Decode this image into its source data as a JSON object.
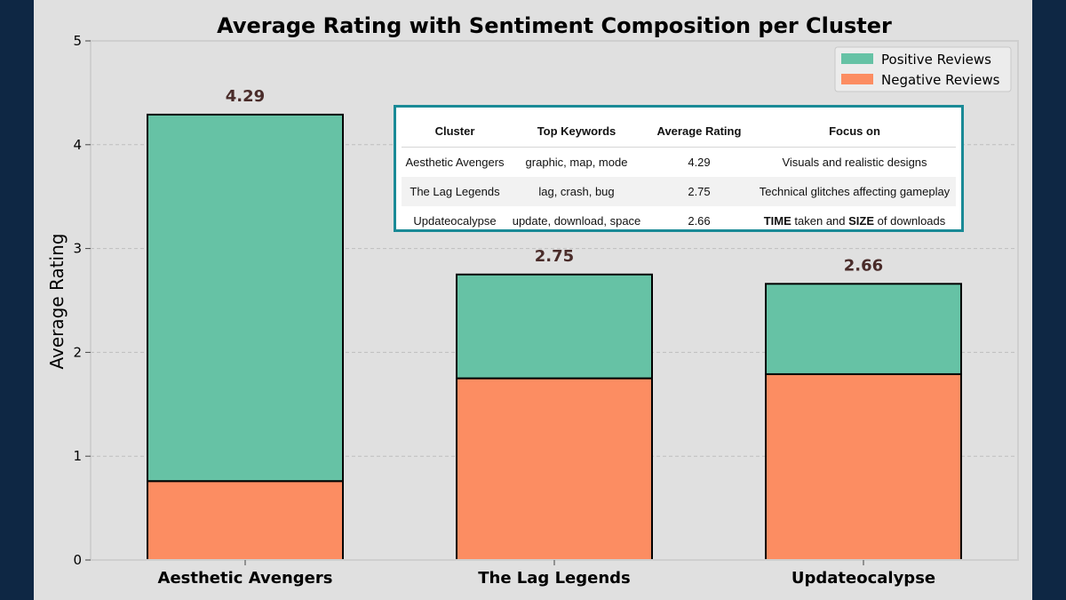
{
  "chart_data": {
    "type": "bar",
    "stacked": true,
    "title": "Average Rating with Sentiment Composition per Cluster",
    "xlabel": "",
    "ylabel": "Average Rating",
    "ylim": [
      0,
      5
    ],
    "yticks": [
      "0",
      "1",
      "2",
      "3",
      "4",
      "5"
    ],
    "grid": "horizontal dashed",
    "legend_position": "top-right",
    "categories": [
      "Aesthetic Avengers",
      "The Lag Legends",
      "Updateocalypse"
    ],
    "totals": [
      4.29,
      2.75,
      2.66
    ],
    "total_labels": [
      "4.29",
      "2.75",
      "2.66"
    ],
    "series": [
      {
        "name": "Negative Reviews",
        "values": [
          0.76,
          1.75,
          1.79
        ],
        "color": "#fc8d62"
      },
      {
        "name": "Positive Reviews",
        "values": [
          3.53,
          1.0,
          0.87
        ],
        "color": "#66c2a5"
      }
    ],
    "legend": [
      "Positive Reviews",
      "Negative Reviews"
    ]
  },
  "table": {
    "headers": [
      "Cluster",
      "Top Keywords",
      "Average Rating",
      "Focus on"
    ],
    "rows": [
      {
        "cluster": "Aesthetic Avengers",
        "keywords": "graphic, map, mode",
        "rating": "4.29",
        "focus": "Visuals and realistic designs"
      },
      {
        "cluster": "The Lag Legends",
        "keywords": "lag, crash, bug",
        "rating": "2.75",
        "focus": "Technical glitches affecting gameplay"
      },
      {
        "cluster": "Updateocalypse",
        "keywords": "update, download, space",
        "rating": "2.66",
        "focus_bold1": "TIME",
        "focus_mid": " taken and ",
        "focus_bold2": "SIZE",
        "focus_end": " of downloads"
      }
    ]
  },
  "colors": {
    "background": "#0e2744",
    "panel": "#e0e0e0",
    "table_border": "#1a8a96"
  }
}
